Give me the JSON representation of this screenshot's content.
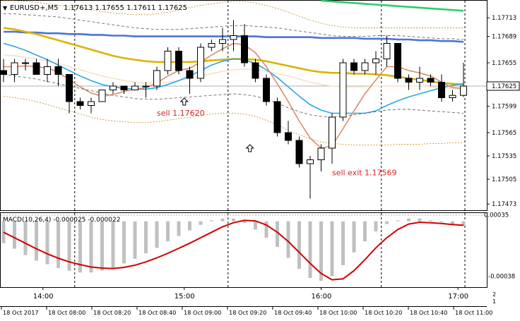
{
  "chart_data": {
    "type": "candlestick",
    "title": "EURUSD+,M5",
    "ohlc_header": "1.17613 1.17655 1.17611 1.17625",
    "current_price": "1.17625",
    "price_axis": {
      "ylim": [
        1.17465,
        1.17735
      ],
      "ticks": [
        "1.17713",
        "1.17689",
        "1.17655",
        "1.17625",
        "1.17599",
        "1.17565",
        "1.17535",
        "1.17505",
        "1.17473"
      ]
    },
    "candles": [
      {
        "o": 1.17645,
        "h": 1.1766,
        "l": 1.1763,
        "c": 1.1764
      },
      {
        "o": 1.1764,
        "h": 1.1766,
        "l": 1.1763,
        "c": 1.17655
      },
      {
        "o": 1.17655,
        "h": 1.1766,
        "l": 1.17645,
        "c": 1.17655
      },
      {
        "o": 1.17655,
        "h": 1.1766,
        "l": 1.1764,
        "c": 1.1764
      },
      {
        "o": 1.1764,
        "h": 1.1766,
        "l": 1.1763,
        "c": 1.1765
      },
      {
        "o": 1.1765,
        "h": 1.1766,
        "l": 1.17625,
        "c": 1.1764
      },
      {
        "o": 1.1764,
        "h": 1.1764,
        "l": 1.1759,
        "c": 1.17605
      },
      {
        "o": 1.17605,
        "h": 1.1761,
        "l": 1.17595,
        "c": 1.176
      },
      {
        "o": 1.176,
        "h": 1.1761,
        "l": 1.1759,
        "c": 1.17605
      },
      {
        "o": 1.17605,
        "h": 1.1762,
        "l": 1.17605,
        "c": 1.1762
      },
      {
        "o": 1.1762,
        "h": 1.1763,
        "l": 1.17615,
        "c": 1.17625
      },
      {
        "o": 1.17625,
        "h": 1.17625,
        "l": 1.17615,
        "c": 1.1762
      },
      {
        "o": 1.1762,
        "h": 1.1763,
        "l": 1.1762,
        "c": 1.17625
      },
      {
        "o": 1.17625,
        "h": 1.1763,
        "l": 1.1761,
        "c": 1.17625
      },
      {
        "o": 1.17625,
        "h": 1.1765,
        "l": 1.1762,
        "c": 1.17645
      },
      {
        "o": 1.17645,
        "h": 1.17675,
        "l": 1.1764,
        "c": 1.1767
      },
      {
        "o": 1.1767,
        "h": 1.17675,
        "l": 1.1764,
        "c": 1.17645
      },
      {
        "o": 1.17645,
        "h": 1.1765,
        "l": 1.17615,
        "c": 1.17635
      },
      {
        "o": 1.17635,
        "h": 1.1768,
        "l": 1.1763,
        "c": 1.17675
      },
      {
        "o": 1.17675,
        "h": 1.17685,
        "l": 1.1767,
        "c": 1.1768
      },
      {
        "o": 1.1768,
        "h": 1.177,
        "l": 1.1767,
        "c": 1.17685
      },
      {
        "o": 1.17685,
        "h": 1.1771,
        "l": 1.1767,
        "c": 1.1769
      },
      {
        "o": 1.1769,
        "h": 1.17705,
        "l": 1.1765,
        "c": 1.17655
      },
      {
        "o": 1.17655,
        "h": 1.1766,
        "l": 1.1763,
        "c": 1.17635
      },
      {
        "o": 1.17635,
        "h": 1.1764,
        "l": 1.176,
        "c": 1.17605
      },
      {
        "o": 1.17605,
        "h": 1.1761,
        "l": 1.1756,
        "c": 1.17565
      },
      {
        "o": 1.17565,
        "h": 1.1758,
        "l": 1.1755,
        "c": 1.17555
      },
      {
        "o": 1.17555,
        "h": 1.1756,
        "l": 1.1752,
        "c": 1.17525
      },
      {
        "o": 1.17525,
        "h": 1.17535,
        "l": 1.1748,
        "c": 1.1753
      },
      {
        "o": 1.1753,
        "h": 1.1755,
        "l": 1.17515,
        "c": 1.17545
      },
      {
        "o": 1.17545,
        "h": 1.1759,
        "l": 1.17525,
        "c": 1.17585
      },
      {
        "o": 1.17585,
        "h": 1.1766,
        "l": 1.1758,
        "c": 1.17655
      },
      {
        "o": 1.17655,
        "h": 1.1766,
        "l": 1.1764,
        "c": 1.17645
      },
      {
        "o": 1.17645,
        "h": 1.1766,
        "l": 1.1764,
        "c": 1.17655
      },
      {
        "o": 1.17655,
        "h": 1.1767,
        "l": 1.1764,
        "c": 1.1766
      },
      {
        "o": 1.1766,
        "h": 1.1769,
        "l": 1.1765,
        "c": 1.1768
      },
      {
        "o": 1.1768,
        "h": 1.1768,
        "l": 1.1763,
        "c": 1.17635
      },
      {
        "o": 1.17635,
        "h": 1.1764,
        "l": 1.1762,
        "c": 1.1763
      },
      {
        "o": 1.1763,
        "h": 1.1765,
        "l": 1.1762,
        "c": 1.17635
      },
      {
        "o": 1.17635,
        "h": 1.1764,
        "l": 1.17625,
        "c": 1.1763
      },
      {
        "o": 1.1763,
        "h": 1.1764,
        "l": 1.17605,
        "c": 1.1761
      },
      {
        "o": 1.1761,
        "h": 1.1762,
        "l": 1.17605,
        "c": 1.17613
      },
      {
        "o": 1.17613,
        "h": 1.17655,
        "l": 1.17611,
        "c": 1.17625
      }
    ],
    "indicators": [
      {
        "color": "#2ecc71",
        "values": [
          null,
          null,
          null,
          null,
          null,
          null,
          null,
          null,
          null,
          null,
          null,
          null,
          null,
          null,
          null,
          null,
          null,
          null,
          null,
          null,
          null,
          null,
          null,
          null,
          null,
          null,
          null,
          null,
          null,
          1.17735,
          1.17734,
          1.17733,
          1.17732,
          1.17731,
          1.1773,
          1.17729,
          1.17728,
          1.17727,
          1.17726,
          1.17725,
          1.17724,
          1.17723,
          1.17722
        ]
      },
      {
        "color": "#4a74d6",
        "values": [
          1.17695,
          1.17695,
          1.17694,
          1.17694,
          1.17693,
          1.17693,
          1.17692,
          1.17692,
          1.17691,
          1.17691,
          1.1769,
          1.1769,
          1.17689,
          1.17689,
          1.17689,
          1.17689,
          1.17689,
          1.17689,
          1.17689,
          1.17689,
          1.17689,
          1.17689,
          1.17689,
          1.17689,
          1.17688,
          1.17688,
          1.17688,
          1.17688,
          1.17688,
          1.17687,
          1.17687,
          1.17687,
          1.17687,
          1.17686,
          1.17686,
          1.17686,
          1.17685,
          1.17685,
          1.17684,
          1.17684,
          1.17683,
          1.17683,
          1.17682
        ]
      },
      {
        "color": "#d9b400",
        "values": [
          1.177,
          1.17698,
          1.17695,
          1.17692,
          1.17688,
          1.17684,
          1.1768,
          1.17676,
          1.17672,
          1.17668,
          1.17664,
          1.17661,
          1.17659,
          1.17657,
          1.17656,
          1.17656,
          1.17656,
          1.17656,
          1.17657,
          1.17658,
          1.17659,
          1.1766,
          1.1766,
          1.17659,
          1.17657,
          1.17654,
          1.17651,
          1.17648,
          1.17645,
          1.17643,
          1.17642,
          1.17642,
          1.17641,
          1.17641,
          1.1764,
          1.17639,
          1.17637,
          1.17635,
          1.17633,
          1.17631,
          1.17629,
          1.17628,
          1.17627
        ]
      },
      {
        "color": "#f5e3c6",
        "values": [
          1.17665,
          1.17664,
          1.17662,
          1.1766,
          1.17657,
          1.17654,
          1.1765,
          1.17646,
          1.17642,
          1.17638,
          1.17635,
          1.17632,
          1.1763,
          1.17629,
          1.17629,
          1.1763,
          1.17632,
          1.17635,
          1.17638,
          1.17641,
          1.17644,
          1.17646,
          1.17647,
          1.17646,
          1.17644,
          1.17641,
          1.17638,
          1.17634,
          1.1763,
          1.17627,
          1.17625,
          1.17624,
          1.17624,
          1.17624,
          1.17625,
          1.17625,
          1.17625,
          1.17625,
          1.17625,
          1.17624,
          1.17623,
          1.17622,
          1.17621
        ]
      },
      {
        "color": "#29a7e1",
        "values": [
          1.1768,
          1.17676,
          1.17671,
          1.17665,
          1.17659,
          1.17652,
          1.17645,
          1.17638,
          1.17632,
          1.17627,
          1.17624,
          1.17622,
          1.17621,
          1.17621,
          1.17623,
          1.17627,
          1.17632,
          1.17638,
          1.17645,
          1.17652,
          1.17657,
          1.1766,
          1.17659,
          1.17654,
          1.17646,
          1.17636,
          1.17624,
          1.17612,
          1.17601,
          1.17594,
          1.1759,
          1.1759,
          1.1759,
          1.1759,
          1.17593,
          1.176,
          1.17606,
          1.17611,
          1.17615,
          1.17619,
          1.17623,
          1.17626,
          1.17628
        ]
      },
      {
        "color": "#d98b6a",
        "values": [
          1.1765,
          1.1765,
          1.17651,
          1.1765,
          1.17648,
          1.17643,
          1.17633,
          1.17624,
          1.17616,
          1.17612,
          1.17614,
          1.17618,
          1.17621,
          1.17623,
          1.17629,
          1.17638,
          1.17645,
          1.17648,
          1.17656,
          1.17665,
          1.17673,
          1.1768,
          1.17678,
          1.17668,
          1.1765,
          1.17628,
          1.17605,
          1.1758,
          1.17558,
          1.17545,
          1.17548,
          1.1757,
          1.17593,
          1.17615,
          1.17633,
          1.1765,
          1.1765,
          1.17645,
          1.17642,
          1.17638,
          1.1763,
          1.17623,
          1.17622
        ]
      },
      {
        "color": "#666666",
        "dash": "4,3",
        "values": [
          1.17718,
          1.17718,
          1.17717,
          1.17716,
          1.17715,
          1.17714,
          1.17712,
          1.1771,
          1.17708,
          1.17706,
          1.17704,
          1.17702,
          1.177,
          1.17699,
          1.17698,
          1.17698,
          1.17698,
          1.17699,
          1.177,
          1.17701,
          1.17702,
          1.17703,
          1.17703,
          1.17702,
          1.17701,
          1.177,
          1.17698,
          1.17696,
          1.17694,
          1.17692,
          1.1769,
          1.17689,
          1.17689,
          1.17689,
          1.1769,
          1.1769,
          1.1769,
          1.17689,
          1.17688,
          1.17687,
          1.17686,
          1.17686,
          1.17685
        ]
      },
      {
        "color": "#666666",
        "dash": "4,3",
        "values": [
          1.1764,
          1.17638,
          1.17636,
          1.17634,
          1.17631,
          1.17628,
          1.17625,
          1.17622,
          1.17619,
          1.17616,
          1.17613,
          1.17611,
          1.17609,
          1.17608,
          1.17608,
          1.17609,
          1.1761,
          1.17611,
          1.17612,
          1.17613,
          1.17614,
          1.17615,
          1.17614,
          1.17612,
          1.17608,
          1.17603,
          1.17597,
          1.17592,
          1.17588,
          1.17586,
          1.17585,
          1.17586,
          1.17588,
          1.1759,
          1.17592,
          1.17594,
          1.17595,
          1.17595,
          1.17594,
          1.17593,
          1.17592,
          1.17591,
          1.1759
        ]
      },
      {
        "color": "#c89632",
        "dash": "2,2",
        "values": [
          1.17735,
          1.17735,
          1.17734,
          1.17733,
          1.17731,
          1.17729,
          1.17727,
          1.17725,
          1.17723,
          1.17721,
          1.17719,
          1.17718,
          1.17717,
          1.17717,
          1.17718,
          1.1772,
          1.17723,
          1.17726,
          1.17729,
          1.17731,
          1.17733,
          1.17734,
          1.17734,
          1.17732,
          1.17729,
          1.17725,
          1.1772,
          1.17715,
          1.1771,
          1.17706,
          1.17703,
          1.17701,
          1.177,
          1.177,
          1.177,
          1.177,
          1.177,
          1.177,
          1.177,
          1.177,
          1.177,
          1.177,
          1.177
        ]
      },
      {
        "color": "#c89632",
        "dash": "2,2",
        "values": [
          1.17612,
          1.1761,
          1.17608,
          1.17605,
          1.17601,
          1.17597,
          1.17593,
          1.17589,
          1.17585,
          1.17582,
          1.1758,
          1.17579,
          1.17578,
          1.17578,
          1.17579,
          1.17581,
          1.17583,
          1.17585,
          1.17587,
          1.17589,
          1.1759,
          1.1759,
          1.17589,
          1.17586,
          1.17581,
          1.17575,
          1.17568,
          1.17562,
          1.17557,
          1.17553,
          1.17551,
          1.1755,
          1.17549,
          1.17549,
          1.17549,
          1.17549,
          1.1755,
          1.1755,
          1.1755,
          1.17551,
          1.17551,
          1.17552,
          1.17552
        ]
      }
    ],
    "session_lines_at_candle": [
      6.5,
      20.5,
      34.5
    ],
    "annotations": [
      {
        "text": "sell 1.17620",
        "color": "#dd1f1f",
        "candle": 14,
        "price": 1.17587
      },
      {
        "text": "sell exit 1.17569",
        "color": "#dd1f1f",
        "candle": 30,
        "price": 1.1751
      }
    ],
    "arrows": [
      {
        "candle": 16.5,
        "price": 1.17605
      },
      {
        "candle": 22.5,
        "price": 1.17545
      }
    ],
    "macd": {
      "label": "MACD(10,26,4) -0.000025 -0.000022",
      "ylim": [
        -0.00036,
        4.5e-05
      ],
      "ticks": [
        "0.00035",
        "-0.00038"
      ],
      "histogram": [
        -0.00012,
        -0.00015,
        -0.000185,
        -0.000215,
        -0.000235,
        -0.000255,
        -0.00027,
        -0.00028,
        -0.00028,
        -0.00027,
        -0.000255,
        -0.00023,
        -0.000205,
        -0.000175,
        -0.000145,
        -0.00011,
        -8e-05,
        -5e-05,
        -2e-05,
        5e-06,
        1.5e-05,
        1.5e-05,
        -1e-05,
        -4.5e-05,
        -9e-05,
        -0.00014,
        -0.0002,
        -0.00026,
        -0.00031,
        -0.000325,
        -0.0003,
        -0.00024,
        -0.00017,
        -0.00011,
        -5.5e-05,
        -1.5e-05,
        5e-06,
        1.5e-05,
        1.5e-05,
        5e-06,
        -5e-06,
        -1.5e-05,
        -2.5e-05
      ],
      "signal": [
        -6e-05,
        -9e-05,
        -0.00012,
        -0.00015,
        -0.000178,
        -0.000202,
        -0.000222,
        -0.000237,
        -0.00025,
        -0.000256,
        -0.000258,
        -0.000252,
        -0.00024,
        -0.000222,
        -0.0002,
        -0.000175,
        -0.000148,
        -0.00012,
        -9e-05,
        -6e-05,
        -3e-05,
        -8e-06,
        5e-06,
        2e-06,
        -2e-05,
        -6e-05,
        -0.00011,
        -0.00017,
        -0.00023,
        -0.000285,
        -0.00032,
        -0.000315,
        -0.00027,
        -0.00021,
        -0.000145,
        -9e-05,
        -4.5e-05,
        -1.5e-05,
        -5e-06,
        -8e-06,
        -1.2e-05,
        -1.8e-05,
        -2.2e-05
      ]
    },
    "time_axis": {
      "session_labels": [
        "14:00",
        "15:00",
        "16:00",
        "17:00"
      ],
      "labels": [
        "18 Oct 2017",
        "18 Oct 08:00",
        "18 Oct 08:20",
        "18 Oct 08:40",
        "18 Oct 09:00",
        "18 Oct 09:20",
        "18 Oct 09:40",
        "18 Oct 10:00",
        "18 Oct 10:20",
        "18 Oct 10:40",
        "18 Oct 11:00"
      ]
    },
    "side_digits": [
      "2",
      "1"
    ]
  }
}
